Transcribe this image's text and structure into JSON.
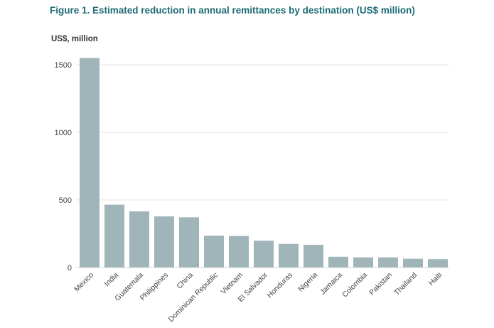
{
  "chart_data": {
    "type": "bar",
    "title": "Figure 1. Estimated reduction in annual remittances by destination (US$ million)",
    "ylabel": "US$, million",
    "xlabel": "",
    "categories": [
      "Mexico",
      "India",
      "Guatemala",
      "Philippines",
      "China",
      "Dominican Republic",
      "Vietnam",
      "El Salvador",
      "Honduras",
      "Nigeria",
      "Jamaica",
      "Colombia",
      "Pakistan",
      "Thailand",
      "Haiti"
    ],
    "values": [
      1550,
      465,
      415,
      378,
      372,
      235,
      233,
      198,
      175,
      168,
      80,
      75,
      75,
      65,
      62
    ],
    "ylim": [
      0,
      1600
    ],
    "yticks": [
      0,
      500,
      1000,
      1500
    ],
    "grid": true,
    "legend": "none",
    "bar_color": "#9fb5ba",
    "title_color": "#1c6b74"
  }
}
